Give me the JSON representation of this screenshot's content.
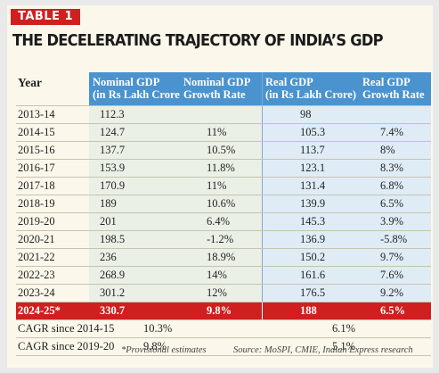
{
  "badge": "TABLE 1",
  "title": "THE DECELERATING TRAJECTORY OF INDIA’S GDP",
  "colors": {
    "accent": "#cf1f1f",
    "header_blue": "#4a93cf",
    "nominal_band": "#eaf0e6",
    "real_band": "#dfecf6",
    "background": "#fbf7ea"
  },
  "chart_data": {
    "type": "table",
    "columns": {
      "year": "Year",
      "nominal_gdp": [
        "Nominal GDP",
        "(in Rs Lakh Crore)"
      ],
      "nominal_growth": [
        "Nominal GDP",
        "Growth Rate"
      ],
      "real_gdp": [
        "Real GDP",
        "(in Rs Lakh Crore)"
      ],
      "real_growth": [
        "Real GDP",
        "Growth Rate"
      ]
    },
    "rows": [
      {
        "year": "2013-14",
        "nominal_gdp": "112.3",
        "nominal_growth": "",
        "real_gdp": "98",
        "real_growth": ""
      },
      {
        "year": "2014-15",
        "nominal_gdp": "124.7",
        "nominal_growth": "11%",
        "real_gdp": "105.3",
        "real_growth": "7.4%"
      },
      {
        "year": "2015-16",
        "nominal_gdp": "137.7",
        "nominal_growth": "10.5%",
        "real_gdp": "113.7",
        "real_growth": "8%"
      },
      {
        "year": "2016-17",
        "nominal_gdp": "153.9",
        "nominal_growth": "11.8%",
        "real_gdp": "123.1",
        "real_growth": "8.3%"
      },
      {
        "year": "2017-18",
        "nominal_gdp": "170.9",
        "nominal_growth": "11%",
        "real_gdp": "131.4",
        "real_growth": "6.8%"
      },
      {
        "year": "2018-19",
        "nominal_gdp": "189",
        "nominal_growth": "10.6%",
        "real_gdp": "139.9",
        "real_growth": "6.5%"
      },
      {
        "year": "2019-20",
        "nominal_gdp": "201",
        "nominal_growth": "6.4%",
        "real_gdp": "145.3",
        "real_growth": "3.9%"
      },
      {
        "year": "2020-21",
        "nominal_gdp": "198.5",
        "nominal_growth": "-1.2%",
        "real_gdp": "136.9",
        "real_growth": "-5.8%"
      },
      {
        "year": "2021-22",
        "nominal_gdp": "236",
        "nominal_growth": "18.9%",
        "real_gdp": "150.2",
        "real_growth": "9.7%"
      },
      {
        "year": "2022-23",
        "nominal_gdp": "268.9",
        "nominal_growth": "14%",
        "real_gdp": "161.6",
        "real_growth": "7.6%"
      },
      {
        "year": "2023-24",
        "nominal_gdp": "301.2",
        "nominal_growth": "12%",
        "real_gdp": "176.5",
        "real_growth": "9.2%"
      },
      {
        "year": "2024-25*",
        "nominal_gdp": "330.7",
        "nominal_growth": "9.8%",
        "real_gdp": "188",
        "real_growth": "6.5%",
        "highlight": true
      }
    ],
    "cagr": [
      {
        "label": "CAGR since 2014-15",
        "nominal": "10.3%",
        "real": "6.1%"
      },
      {
        "label": "CAGR since 2019-20",
        "nominal": "9.8%",
        "real": "5.1%"
      }
    ]
  },
  "footnote": {
    "provisional": "*Provisional estimates",
    "source": "Source: MoSPI, CMIE, Indian Express research"
  }
}
